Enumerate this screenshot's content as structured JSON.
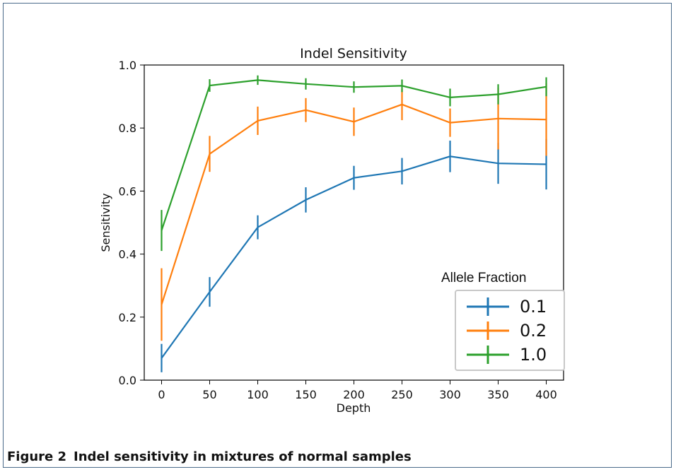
{
  "caption": {
    "figure_label": "Figure 2",
    "text": "Indel sensitivity in mixtures of normal samples"
  },
  "chart_data": {
    "type": "line",
    "title": "Indel Sensitivity",
    "xlabel": "Depth",
    "ylabel": "Sensitivity",
    "xlim": [
      -18,
      418
    ],
    "ylim": [
      0.0,
      1.0
    ],
    "x_ticks": [
      0,
      50,
      100,
      150,
      200,
      250,
      300,
      350,
      400
    ],
    "y_ticks": [
      0.0,
      0.2,
      0.4,
      0.6,
      0.8,
      1.0
    ],
    "y_tick_labels": [
      "0.0",
      "0.2",
      "0.4",
      "0.6",
      "0.8",
      "1.0"
    ],
    "legend": {
      "title": "Allele Fraction",
      "position": "lower-right"
    },
    "x": [
      0,
      50,
      100,
      150,
      200,
      250,
      300,
      350,
      400
    ],
    "series": [
      {
        "name": "0.1",
        "color": "#1f77b4",
        "values": [
          0.07,
          0.28,
          0.485,
          0.572,
          0.642,
          0.663,
          0.71,
          0.688,
          0.685
        ],
        "err": [
          0.045,
          0.047,
          0.038,
          0.04,
          0.038,
          0.042,
          0.05,
          0.065,
          0.08
        ]
      },
      {
        "name": "0.2",
        "color": "#ff7f0e",
        "values": [
          0.24,
          0.718,
          0.823,
          0.857,
          0.82,
          0.875,
          0.817,
          0.83,
          0.827
        ],
        "err": [
          0.115,
          0.057,
          0.045,
          0.038,
          0.045,
          0.05,
          0.045,
          0.098,
          0.115
        ]
      },
      {
        "name": "1.0",
        "color": "#2ca02c",
        "values": [
          0.475,
          0.935,
          0.952,
          0.94,
          0.93,
          0.934,
          0.897,
          0.907,
          0.931
        ],
        "err": [
          0.065,
          0.02,
          0.015,
          0.018,
          0.018,
          0.02,
          0.028,
          0.032,
          0.03
        ]
      }
    ]
  }
}
